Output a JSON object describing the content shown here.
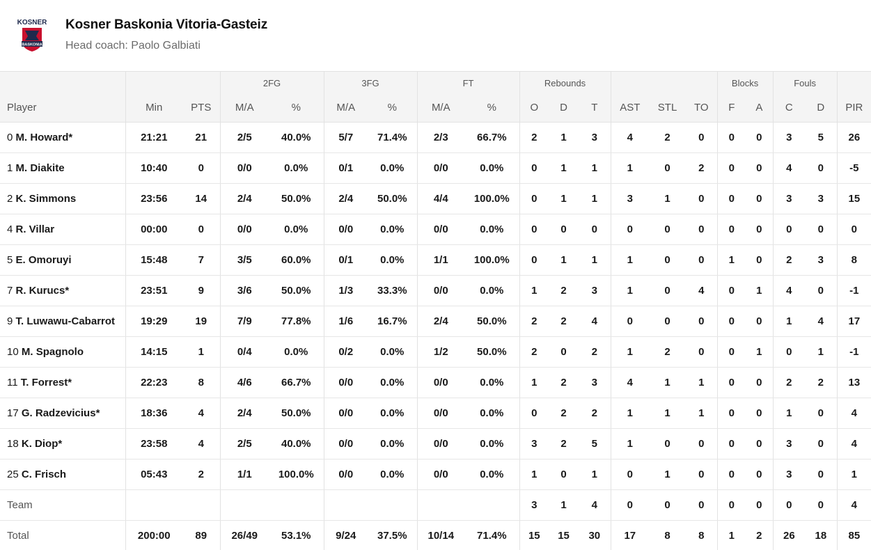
{
  "team": {
    "logo_text": "Kosner",
    "logo_badge_text": "BASKONIA",
    "name": "Kosner Baskonia Vitoria-Gasteiz",
    "coach": "Head coach: Paolo Galbiati",
    "colors": {
      "primary": "#c8102e",
      "dark": "#1f2a4d"
    }
  },
  "table": {
    "group_headers": {
      "fg2": "2FG",
      "fg3": "3FG",
      "ft": "FT",
      "rebounds": "Rebounds",
      "blocks": "Blocks",
      "fouls": "Fouls"
    },
    "columns": [
      "Player",
      "Min",
      "PTS",
      "M/A",
      "%",
      "M/A",
      "%",
      "M/A",
      "%",
      "O",
      "D",
      "T",
      "AST",
      "STL",
      "TO",
      "F",
      "A",
      "C",
      "D",
      "PIR"
    ],
    "rows": [
      {
        "num": "0",
        "name": "M. Howard*",
        "min": "21:21",
        "pts": "21",
        "fg2": "2/5",
        "fg2p": "40.0%",
        "fg3": "5/7",
        "fg3p": "71.4%",
        "ft": "2/3",
        "ftp": "66.7%",
        "o": "2",
        "d": "1",
        "t": "3",
        "ast": "4",
        "stl": "2",
        "to": "0",
        "bf": "0",
        "ba": "0",
        "fc": "3",
        "fd": "5",
        "pir": "26"
      },
      {
        "num": "1",
        "name": "M. Diakite",
        "min": "10:40",
        "pts": "0",
        "fg2": "0/0",
        "fg2p": "0.0%",
        "fg3": "0/1",
        "fg3p": "0.0%",
        "ft": "0/0",
        "ftp": "0.0%",
        "o": "0",
        "d": "1",
        "t": "1",
        "ast": "1",
        "stl": "0",
        "to": "2",
        "bf": "0",
        "ba": "0",
        "fc": "4",
        "fd": "0",
        "pir": "-5"
      },
      {
        "num": "2",
        "name": "K. Simmons",
        "min": "23:56",
        "pts": "14",
        "fg2": "2/4",
        "fg2p": "50.0%",
        "fg3": "2/4",
        "fg3p": "50.0%",
        "ft": "4/4",
        "ftp": "100.0%",
        "o": "0",
        "d": "1",
        "t": "1",
        "ast": "3",
        "stl": "1",
        "to": "0",
        "bf": "0",
        "ba": "0",
        "fc": "3",
        "fd": "3",
        "pir": "15"
      },
      {
        "num": "4",
        "name": "R. Villar",
        "min": "00:00",
        "pts": "0",
        "fg2": "0/0",
        "fg2p": "0.0%",
        "fg3": "0/0",
        "fg3p": "0.0%",
        "ft": "0/0",
        "ftp": "0.0%",
        "o": "0",
        "d": "0",
        "t": "0",
        "ast": "0",
        "stl": "0",
        "to": "0",
        "bf": "0",
        "ba": "0",
        "fc": "0",
        "fd": "0",
        "pir": "0"
      },
      {
        "num": "5",
        "name": "E. Omoruyi",
        "min": "15:48",
        "pts": "7",
        "fg2": "3/5",
        "fg2p": "60.0%",
        "fg3": "0/1",
        "fg3p": "0.0%",
        "ft": "1/1",
        "ftp": "100.0%",
        "o": "0",
        "d": "1",
        "t": "1",
        "ast": "1",
        "stl": "0",
        "to": "0",
        "bf": "1",
        "ba": "0",
        "fc": "2",
        "fd": "3",
        "pir": "8"
      },
      {
        "num": "7",
        "name": "R. Kurucs*",
        "min": "23:51",
        "pts": "9",
        "fg2": "3/6",
        "fg2p": "50.0%",
        "fg3": "1/3",
        "fg3p": "33.3%",
        "ft": "0/0",
        "ftp": "0.0%",
        "o": "1",
        "d": "2",
        "t": "3",
        "ast": "1",
        "stl": "0",
        "to": "4",
        "bf": "0",
        "ba": "1",
        "fc": "4",
        "fd": "0",
        "pir": "-1"
      },
      {
        "num": "9",
        "name": "T. Luwawu-Cabarrot",
        "min": "19:29",
        "pts": "19",
        "fg2": "7/9",
        "fg2p": "77.8%",
        "fg3": "1/6",
        "fg3p": "16.7%",
        "ft": "2/4",
        "ftp": "50.0%",
        "o": "2",
        "d": "2",
        "t": "4",
        "ast": "0",
        "stl": "0",
        "to": "0",
        "bf": "0",
        "ba": "0",
        "fc": "1",
        "fd": "4",
        "pir": "17"
      },
      {
        "num": "10",
        "name": "M. Spagnolo",
        "min": "14:15",
        "pts": "1",
        "fg2": "0/4",
        "fg2p": "0.0%",
        "fg3": "0/2",
        "fg3p": "0.0%",
        "ft": "1/2",
        "ftp": "50.0%",
        "o": "2",
        "d": "0",
        "t": "2",
        "ast": "1",
        "stl": "2",
        "to": "0",
        "bf": "0",
        "ba": "1",
        "fc": "0",
        "fd": "1",
        "pir": "-1"
      },
      {
        "num": "11",
        "name": "T. Forrest*",
        "min": "22:23",
        "pts": "8",
        "fg2": "4/6",
        "fg2p": "66.7%",
        "fg3": "0/0",
        "fg3p": "0.0%",
        "ft": "0/0",
        "ftp": "0.0%",
        "o": "1",
        "d": "2",
        "t": "3",
        "ast": "4",
        "stl": "1",
        "to": "1",
        "bf": "0",
        "ba": "0",
        "fc": "2",
        "fd": "2",
        "pir": "13"
      },
      {
        "num": "17",
        "name": "G. Radzevicius*",
        "min": "18:36",
        "pts": "4",
        "fg2": "2/4",
        "fg2p": "50.0%",
        "fg3": "0/0",
        "fg3p": "0.0%",
        "ft": "0/0",
        "ftp": "0.0%",
        "o": "0",
        "d": "2",
        "t": "2",
        "ast": "1",
        "stl": "1",
        "to": "1",
        "bf": "0",
        "ba": "0",
        "fc": "1",
        "fd": "0",
        "pir": "4"
      },
      {
        "num": "18",
        "name": "K. Diop*",
        "min": "23:58",
        "pts": "4",
        "fg2": "2/5",
        "fg2p": "40.0%",
        "fg3": "0/0",
        "fg3p": "0.0%",
        "ft": "0/0",
        "ftp": "0.0%",
        "o": "3",
        "d": "2",
        "t": "5",
        "ast": "1",
        "stl": "0",
        "to": "0",
        "bf": "0",
        "ba": "0",
        "fc": "3",
        "fd": "0",
        "pir": "4"
      },
      {
        "num": "25",
        "name": "C. Frisch",
        "min": "05:43",
        "pts": "2",
        "fg2": "1/1",
        "fg2p": "100.0%",
        "fg3": "0/0",
        "fg3p": "0.0%",
        "ft": "0/0",
        "ftp": "0.0%",
        "o": "1",
        "d": "0",
        "t": "1",
        "ast": "0",
        "stl": "1",
        "to": "0",
        "bf": "0",
        "ba": "0",
        "fc": "3",
        "fd": "0",
        "pir": "1"
      }
    ],
    "team_row": {
      "label": "Team",
      "o": "3",
      "d": "1",
      "t": "4",
      "ast": "0",
      "stl": "0",
      "to": "0",
      "bf": "0",
      "ba": "0",
      "fc": "0",
      "fd": "0",
      "pir": "4"
    },
    "total_row": {
      "label": "Total",
      "min": "200:00",
      "pts": "89",
      "fg2": "26/49",
      "fg2p": "53.1%",
      "fg3": "9/24",
      "fg3p": "37.5%",
      "ft": "10/14",
      "ftp": "71.4%",
      "o": "15",
      "d": "15",
      "t": "30",
      "ast": "17",
      "stl": "8",
      "to": "8",
      "bf": "1",
      "ba": "2",
      "fc": "26",
      "fd": "18",
      "pir": "85"
    }
  }
}
